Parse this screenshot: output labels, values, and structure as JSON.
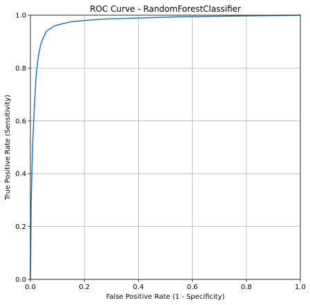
{
  "chart_data": {
    "type": "line",
    "title": "ROC Curve - RandomForestClassifier",
    "xlabel": "False Positive Rate (1 - Specificity)",
    "ylabel": "True Positive Rate (Sensitivity)",
    "xlim": [
      0,
      1
    ],
    "ylim": [
      0,
      1
    ],
    "xticks": [
      0,
      0.2,
      0.4,
      0.6,
      0.8,
      1
    ],
    "yticks": [
      0,
      0.2,
      0.4,
      0.6,
      0.8,
      1
    ],
    "xtick_labels": [
      "0.0",
      "0.2",
      "0.4",
      "0.6",
      "0.8",
      "1.0"
    ],
    "ytick_labels": [
      "0.0",
      "0.2",
      "0.4",
      "0.6",
      "0.8",
      "1.0"
    ],
    "grid": true,
    "series": [
      {
        "color": "#1f77b4",
        "x": [
          0.0,
          0.003,
          0.008,
          0.014,
          0.02,
          0.026,
          0.033,
          0.04,
          0.048,
          0.06,
          0.075,
          0.09,
          0.12,
          0.15,
          0.2,
          0.26,
          0.35,
          0.45,
          0.55,
          0.7,
          0.85,
          1.0
        ],
        "y": [
          0.0,
          0.3,
          0.5,
          0.64,
          0.75,
          0.82,
          0.865,
          0.895,
          0.915,
          0.94,
          0.95,
          0.96,
          0.968,
          0.975,
          0.98,
          0.985,
          0.988,
          0.991,
          0.994,
          0.996,
          0.998,
          1.0
        ]
      }
    ]
  }
}
